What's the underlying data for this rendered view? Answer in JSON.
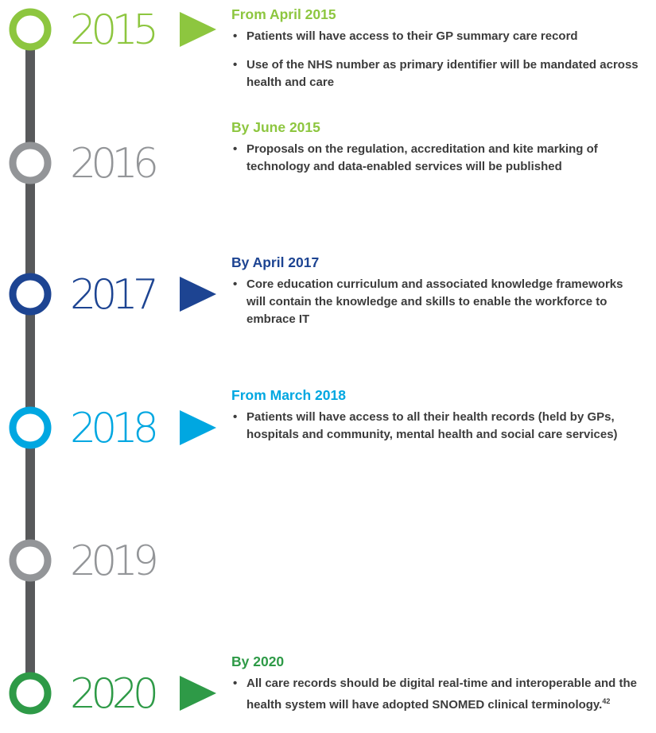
{
  "years": [
    {
      "label": "2015",
      "color": "#8dc63f",
      "arrow": true
    },
    {
      "label": "2016",
      "color": "#939598",
      "arrow": false
    },
    {
      "label": "2017",
      "color": "#1d4492",
      "arrow": true
    },
    {
      "label": "2018",
      "color": "#00a7e1",
      "arrow": true
    },
    {
      "label": "2019",
      "color": "#939598",
      "arrow": false
    },
    {
      "label": "2020",
      "color": "#2e9a47",
      "arrow": true
    }
  ],
  "sections": [
    {
      "heading": "From April 2015",
      "color": "#8dc63f",
      "bullets": [
        "Patients will have access to their GP summary care record",
        "Use of the NHS number as primary identifier will be mandated across health and care"
      ]
    },
    {
      "heading": "By June 2015",
      "color": "#8dc63f",
      "bullets": [
        "Proposals on the regulation, accreditation and kite marking of technology and data-enabled services will be published"
      ]
    },
    {
      "heading": "By April 2017",
      "color": "#1d4492",
      "bullets": [
        "Core education curriculum and associated knowledge frameworks will contain the knowledge and skills to enable the workforce to embrace IT"
      ]
    },
    {
      "heading": "From March 2018",
      "color": "#00a7e1",
      "bullets": [
        "Patients will have access to all their health records (held by GPs, hospitals and community, mental health and social care services)"
      ]
    },
    {
      "heading": "By 2020",
      "color": "#2e9a47",
      "bullets": [
        "All care records should be digital real-time and interoperable and the health system will have adopted SNOMED clinical terminology."
      ],
      "footnote": "42"
    }
  ]
}
